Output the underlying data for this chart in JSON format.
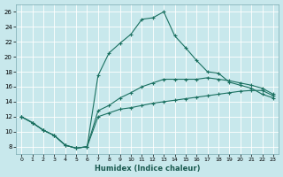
{
  "xlabel": "Humidex (Indice chaleur)",
  "bg_color": "#c8e8ec",
  "grid_color": "#b0d8dc",
  "line_color": "#1a7060",
  "xlim": [
    -0.5,
    23.5
  ],
  "ylim": [
    7,
    27
  ],
  "xticks": [
    0,
    1,
    2,
    3,
    4,
    5,
    6,
    7,
    8,
    9,
    10,
    11,
    12,
    13,
    14,
    15,
    16,
    17,
    18,
    19,
    20,
    21,
    22,
    23
  ],
  "yticks": [
    8,
    10,
    12,
    14,
    16,
    18,
    20,
    22,
    24,
    26
  ],
  "line1_x": [
    0,
    1,
    2,
    3,
    4,
    5,
    6,
    7,
    8,
    9,
    10,
    11,
    12,
    13,
    14,
    15,
    16,
    17,
    18,
    19,
    20,
    21,
    22,
    23
  ],
  "line1_y": [
    12.0,
    11.2,
    10.2,
    9.5,
    8.2,
    7.8,
    8.0,
    17.5,
    20.5,
    21.8,
    23.0,
    25.0,
    25.2,
    26.0,
    22.8,
    21.2,
    19.5,
    18.0,
    17.8,
    16.6,
    16.2,
    15.8,
    15.0,
    14.5
  ],
  "line2_x": [
    0,
    1,
    2,
    3,
    4,
    5,
    6,
    7,
    8,
    9,
    10,
    11,
    12,
    13,
    14,
    15,
    16,
    17,
    18,
    19,
    20,
    21,
    22,
    23
  ],
  "line2_y": [
    12.0,
    11.2,
    10.2,
    9.5,
    8.2,
    7.8,
    8.0,
    12.8,
    13.5,
    14.5,
    15.2,
    16.0,
    16.5,
    17.0,
    17.0,
    17.0,
    17.0,
    17.2,
    17.0,
    16.8,
    16.5,
    16.2,
    15.8,
    15.0
  ],
  "line3_x": [
    0,
    1,
    2,
    3,
    4,
    5,
    6,
    7,
    8,
    9,
    10,
    11,
    12,
    13,
    14,
    15,
    16,
    17,
    18,
    19,
    20,
    21,
    22,
    23
  ],
  "line3_y": [
    12.0,
    11.2,
    10.2,
    9.5,
    8.2,
    7.8,
    8.0,
    12.0,
    12.5,
    13.0,
    13.2,
    13.5,
    13.8,
    14.0,
    14.2,
    14.4,
    14.6,
    14.8,
    15.0,
    15.2,
    15.4,
    15.5,
    15.5,
    14.8
  ]
}
